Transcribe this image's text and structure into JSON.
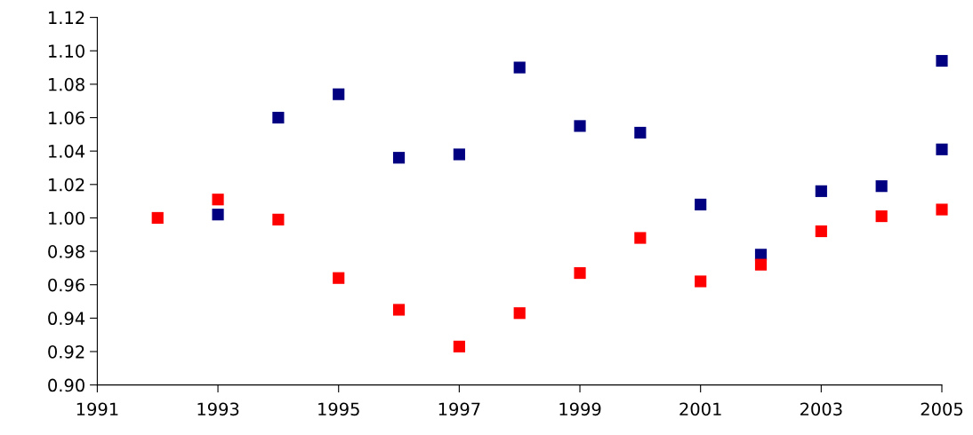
{
  "chart_data": {
    "type": "scatter",
    "marker": "square",
    "grid": false,
    "xlim": [
      1991,
      2005
    ],
    "xticks": [
      1991,
      1993,
      1995,
      1997,
      1999,
      2001,
      2003,
      2005
    ],
    "ylim": [
      0.9,
      1.12
    ],
    "yticks": [
      {
        "value": 0.9,
        "label": "0.90"
      },
      {
        "value": 0.92,
        "label": "0.92"
      },
      {
        "value": 0.94,
        "label": "0.94"
      },
      {
        "value": 0.96,
        "label": "0.96"
      },
      {
        "value": 0.98,
        "label": "0.98"
      },
      {
        "value": 1.0,
        "label": "1.00"
      },
      {
        "value": 1.02,
        "label": "1.02"
      },
      {
        "value": 1.04,
        "label": "1.04"
      },
      {
        "value": 1.06,
        "label": "1.06"
      },
      {
        "value": 1.08,
        "label": "1.08"
      },
      {
        "value": 1.1,
        "label": "1.10"
      },
      {
        "value": 1.12,
        "label": "1.12"
      }
    ],
    "series": [
      {
        "color": "#000080",
        "x": [
          1993,
          1994,
          1995,
          1996,
          1997,
          1998,
          1999,
          2000,
          2001,
          2002,
          2003,
          2004,
          2005,
          2005
        ],
        "values": [
          1.002,
          1.06,
          1.074,
          1.036,
          1.038,
          1.09,
          1.055,
          1.051,
          1.008,
          0.978,
          1.016,
          1.019,
          1.094,
          1.041
        ]
      },
      {
        "color": "#ff0000",
        "x": [
          1992,
          1993,
          1994,
          1995,
          1996,
          1997,
          1998,
          1999,
          2000,
          2001,
          2002,
          2003,
          2004,
          2005
        ],
        "values": [
          1.0,
          1.011,
          0.999,
          0.964,
          0.945,
          0.923,
          0.943,
          0.967,
          0.988,
          0.962,
          0.972,
          0.992,
          1.001,
          1.005
        ]
      }
    ]
  }
}
